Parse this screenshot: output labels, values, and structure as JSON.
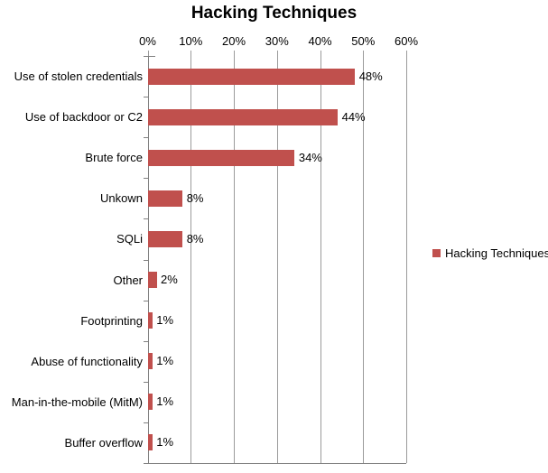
{
  "chart_data": {
    "type": "bar",
    "orientation": "horizontal",
    "title": "Hacking Techniques",
    "categories": [
      "Use of stolen credentials",
      "Use of backdoor or C2",
      "Brute force",
      "Unkown",
      "SQLi",
      "Other",
      "Footprinting",
      "Abuse of functionality",
      "Man-in-the-mobile (MitM)",
      "Buffer overflow"
    ],
    "values": [
      48,
      44,
      34,
      8,
      8,
      2,
      1,
      1,
      1,
      1
    ],
    "value_labels": [
      "48%",
      "44%",
      "34%",
      "8%",
      "8%",
      "2%",
      "1%",
      "1%",
      "1%",
      "1%"
    ],
    "xlabel": "",
    "ylabel": "",
    "x_axis": {
      "position": "top",
      "min": 0,
      "max": 60,
      "step": 10,
      "tick_labels": [
        "0%",
        "10%",
        "20%",
        "30%",
        "40%",
        "50%",
        "60%"
      ]
    },
    "grid": true,
    "bar_color": "#C0504D",
    "legend": {
      "position": "right",
      "entries": [
        {
          "label": "Hacking Techniques",
          "color": "#C0504D"
        }
      ]
    }
  }
}
